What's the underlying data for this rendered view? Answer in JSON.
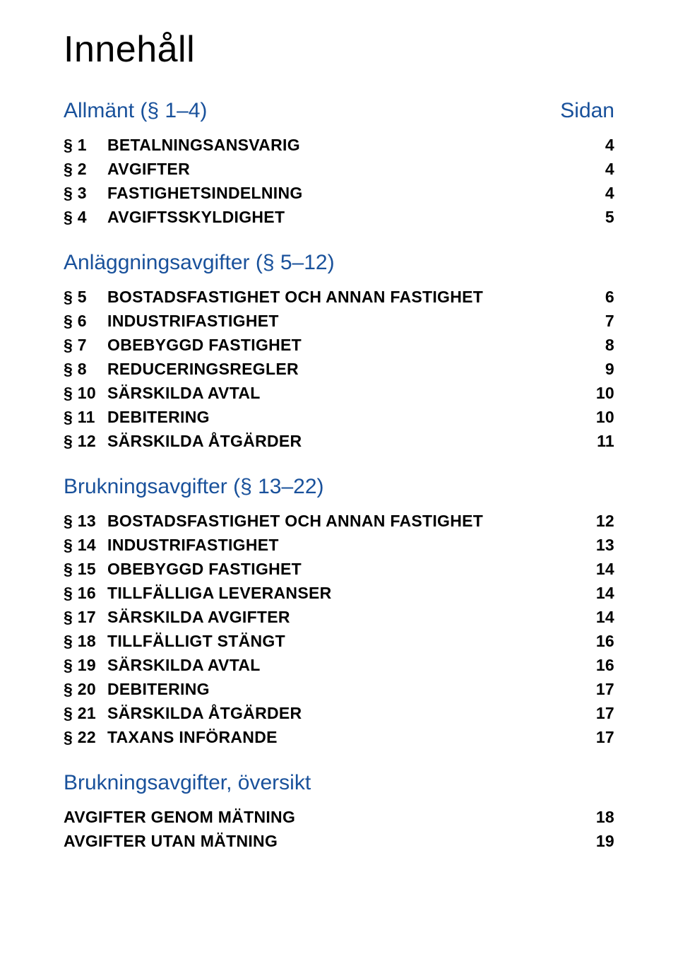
{
  "title": "Innehåll",
  "sidan_label": "Sidan",
  "colors": {
    "heading": "#19519b",
    "text": "#000000",
    "background": "#ffffff"
  },
  "typography": {
    "title_fontsize": 52,
    "section_title_fontsize": 30,
    "row_fontsize": 23,
    "row_fontweight": 600
  },
  "sections": [
    {
      "title": "Allmänt (§ 1–4)",
      "show_sidan": true,
      "rows": [
        {
          "num": "§ 1",
          "label": "BETALNINGSANSVARIG",
          "page": "4"
        },
        {
          "num": "§ 2",
          "label": "AVGIFTER",
          "page": "4"
        },
        {
          "num": "§ 3",
          "label": "FASTIGHETSINDELNING",
          "page": "4"
        },
        {
          "num": "§ 4",
          "label": "AVGIFTSSKYLDIGHET",
          "page": "5"
        }
      ]
    },
    {
      "title": "Anläggningsavgifter (§ 5–12)",
      "show_sidan": false,
      "rows": [
        {
          "num": "§ 5",
          "label": "BOSTADSFASTIGHET OCH ANNAN FASTIGHET",
          "page": "6"
        },
        {
          "num": "§ 6",
          "label": "INDUSTRIFASTIGHET",
          "page": "7"
        },
        {
          "num": "§ 7",
          "label": "OBEBYGGD FASTIGHET",
          "page": "8"
        },
        {
          "num": "§ 8",
          "label": "REDUCERINGSREGLER",
          "page": "9"
        },
        {
          "num": "§ 10",
          "label": "SÄRSKILDA AVTAL",
          "page": "10"
        },
        {
          "num": "§ 11",
          "label": "DEBITERING",
          "page": "10"
        },
        {
          "num": "§ 12",
          "label": "SÄRSKILDA ÅTGÄRDER",
          "page": "11"
        }
      ]
    },
    {
      "title": "Brukningsavgifter (§ 13–22)",
      "show_sidan": false,
      "rows": [
        {
          "num": "§ 13",
          "label": "BOSTADSFASTIGHET OCH ANNAN FASTIGHET",
          "page": "12"
        },
        {
          "num": "§ 14",
          "label": "INDUSTRIFASTIGHET",
          "page": "13"
        },
        {
          "num": "§ 15",
          "label": "OBEBYGGD FASTIGHET",
          "page": "14"
        },
        {
          "num": "§ 16",
          "label": "TILLFÄLLIGA LEVERANSER",
          "page": "14"
        },
        {
          "num": "§ 17",
          "label": "SÄRSKILDA AVGIFTER",
          "page": "14"
        },
        {
          "num": "§ 18",
          "label": "TILLFÄLLIGT STÄNGT",
          "page": "16"
        },
        {
          "num": "§ 19",
          "label": "SÄRSKILDA AVTAL",
          "page": "16"
        },
        {
          "num": "§ 20",
          "label": "DEBITERING",
          "page": "17"
        },
        {
          "num": "§ 21",
          "label": "SÄRSKILDA ÅTGÄRDER",
          "page": "17"
        },
        {
          "num": "§ 22",
          "label": "TAXANS INFÖRANDE",
          "page": "17"
        }
      ]
    }
  ],
  "final_section": {
    "title": "Brukningsavgifter, översikt",
    "rows": [
      {
        "label": "AVGIFTER GENOM MÄTNING",
        "page": "18"
      },
      {
        "label": "AVGIFTER UTAN MÄTNING",
        "page": "19"
      }
    ]
  }
}
